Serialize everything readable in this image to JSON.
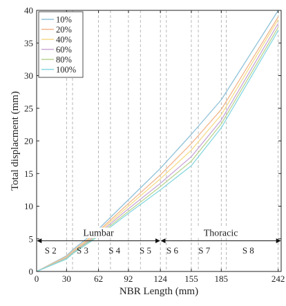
{
  "chart_data": {
    "type": "line",
    "xlabel": "NBR Length (mm)",
    "ylabel": "Total displacment (mm)",
    "xlim": [
      0,
      245
    ],
    "ylim": [
      0,
      40
    ],
    "x_ticks": [
      0,
      30,
      62,
      92,
      124,
      155,
      185,
      242
    ],
    "y_ticks": [
      0,
      5,
      10,
      15,
      20,
      25,
      30,
      35,
      40
    ],
    "grid": false,
    "legend_position": "top-left",
    "series": [
      {
        "name": "10%",
        "color": "#8fc1d8",
        "x": [
          0,
          30,
          36,
          62,
          92,
          124,
          155,
          185,
          242
        ],
        "y": [
          0,
          2.4,
          3.3,
          6.5,
          11.0,
          15.8,
          21.0,
          26.3,
          40.0
        ]
      },
      {
        "name": "20%",
        "color": "#f2b58a",
        "x": [
          0,
          30,
          36,
          62,
          92,
          124,
          155,
          185,
          242
        ],
        "y": [
          0,
          2.3,
          3.1,
          6.2,
          10.4,
          14.8,
          19.6,
          24.8,
          39.0
        ]
      },
      {
        "name": "40%",
        "color": "#f5dc8a",
        "x": [
          0,
          30,
          36,
          62,
          92,
          124,
          155,
          185,
          242
        ],
        "y": [
          0,
          2.2,
          3.0,
          6.0,
          10.0,
          14.2,
          18.6,
          24.0,
          38.6
        ]
      },
      {
        "name": "60%",
        "color": "#c9a7d6",
        "x": [
          0,
          30,
          36,
          62,
          92,
          124,
          155,
          185,
          242
        ],
        "y": [
          0,
          2.1,
          2.9,
          5.8,
          9.6,
          13.5,
          17.6,
          23.2,
          38.0
        ]
      },
      {
        "name": "80%",
        "color": "#b8d490",
        "x": [
          0,
          30,
          36,
          62,
          92,
          124,
          155,
          185,
          242
        ],
        "y": [
          0,
          2.0,
          2.8,
          5.6,
          9.2,
          13.0,
          16.9,
          22.6,
          37.4
        ]
      },
      {
        "name": "100%",
        "color": "#86d6e0",
        "x": [
          0,
          30,
          36,
          62,
          92,
          124,
          155,
          185,
          242
        ],
        "y": [
          0,
          1.9,
          2.7,
          5.4,
          8.9,
          12.5,
          16.2,
          22.0,
          36.9
        ]
      }
    ],
    "reference_lines": [
      30,
      36,
      62,
      74,
      92,
      104,
      124,
      130,
      155,
      162,
      185,
      190,
      242,
      245
    ],
    "regions": [
      {
        "label": "Lumbar",
        "from": 0,
        "to": 124,
        "y": 4.7
      },
      {
        "label": "Thoracic",
        "from": 124,
        "to": 245,
        "y": 4.7
      }
    ],
    "segment_labels": [
      {
        "label": "S 2",
        "x": 14,
        "y": 3.3
      },
      {
        "label": "S 3",
        "x": 46,
        "y": 3.3
      },
      {
        "label": "S 4",
        "x": 78,
        "y": 3.3
      },
      {
        "label": "S 5",
        "x": 109,
        "y": 3.3
      },
      {
        "label": "S 6",
        "x": 136,
        "y": 3.3
      },
      {
        "label": "S 7",
        "x": 168,
        "y": 3.3
      },
      {
        "label": "S 8",
        "x": 212,
        "y": 3.3
      }
    ]
  }
}
